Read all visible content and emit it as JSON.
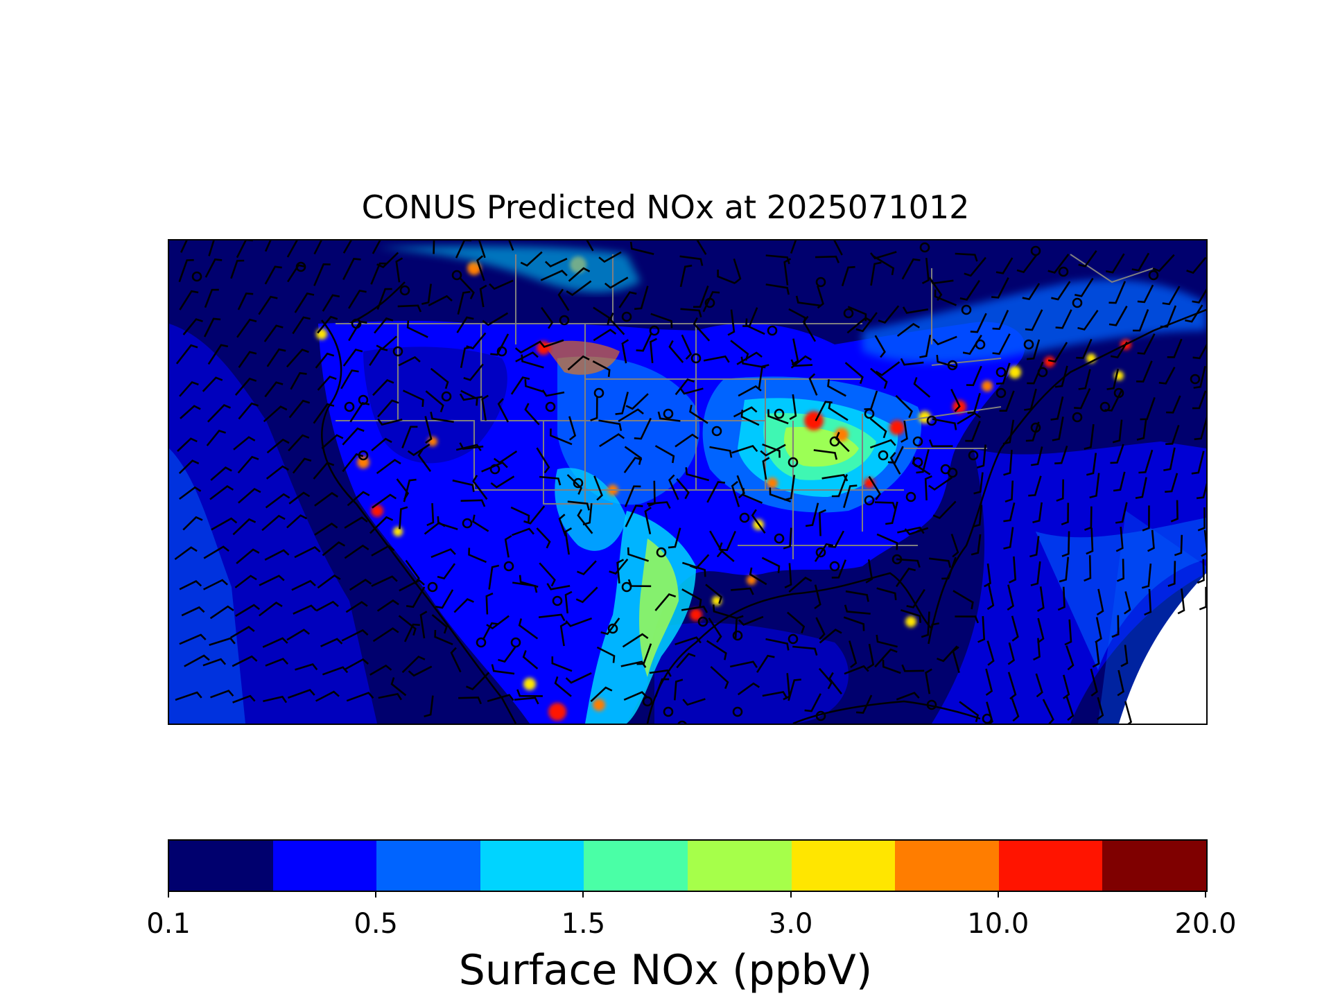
{
  "map": {
    "title": "CONUS Predicted NOx at 2025071012",
    "region": "Contiguous United States",
    "variable": "Surface NOx",
    "overlays": [
      "wind-barbs",
      "station-circles",
      "state-borders",
      "coastlines"
    ]
  },
  "colorbar": {
    "title": "Surface NOx (ppbV)",
    "tick_labels": [
      "0.1",
      "0.5",
      "1.5",
      "3.0",
      "10.0",
      "20.0"
    ],
    "colors": [
      "#00006e",
      "#0000ff",
      "#0064ff",
      "#00d4ff",
      "#4affa6",
      "#a6ff4a",
      "#ffe600",
      "#ff7d00",
      "#ff1400",
      "#7f0000"
    ]
  }
}
